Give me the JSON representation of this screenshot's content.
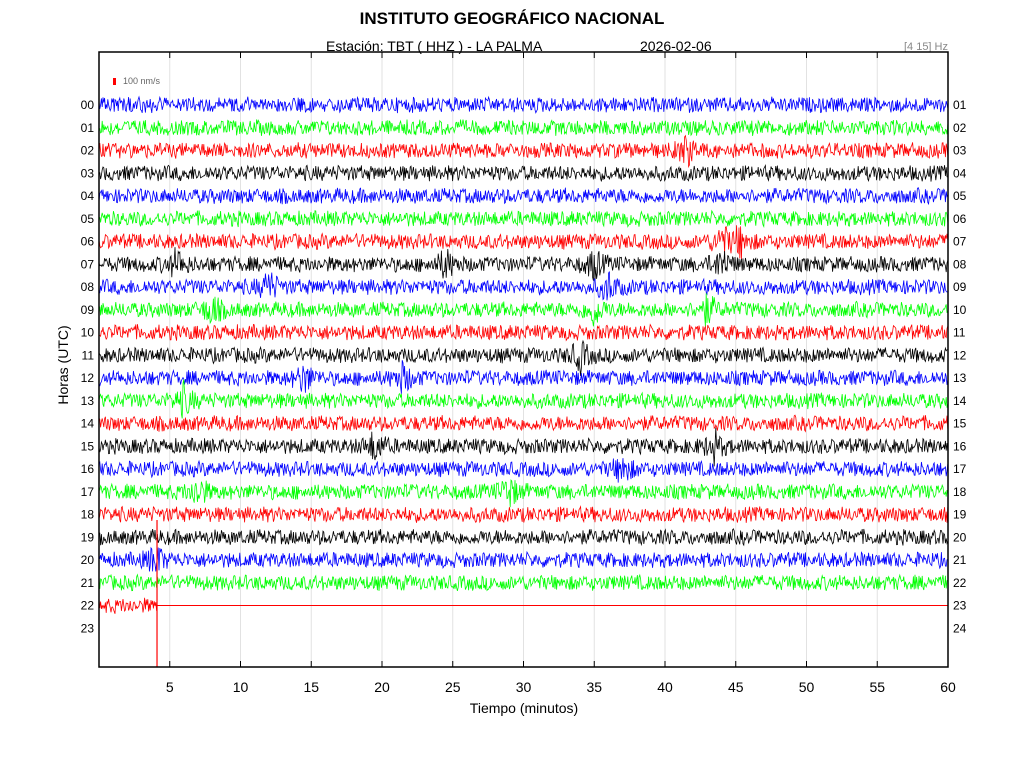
{
  "header": {
    "title": "INSTITUTO GEOGRÁFICO NACIONAL",
    "station": "Estación:  TBT ( HHZ ) - LA PALMA",
    "date": "2026-02-06",
    "filter": "[4 15] Hz"
  },
  "legend": {
    "scale_label": "100 nm/s",
    "scale_color": "#ff0000"
  },
  "chart_data": {
    "type": "line",
    "title": "INSTITUTO GEOGRÁFICO NACIONAL",
    "xlabel": "Tiempo (minutos)",
    "ylabel": "Horas (UTC)",
    "xlim": [
      0,
      60
    ],
    "x_ticks": [
      5,
      10,
      15,
      20,
      25,
      30,
      35,
      40,
      45,
      50,
      55,
      60
    ],
    "left_hour_labels": [
      "00",
      "01",
      "02",
      "03",
      "04",
      "05",
      "06",
      "07",
      "08",
      "09",
      "10",
      "11",
      "12",
      "13",
      "14",
      "15",
      "16",
      "17",
      "18",
      "19",
      "20",
      "21",
      "22",
      "23"
    ],
    "right_hour_labels": [
      "01",
      "02",
      "03",
      "04",
      "05",
      "06",
      "07",
      "08",
      "09",
      "10",
      "11",
      "12",
      "13",
      "14",
      "15",
      "16",
      "17",
      "18",
      "19",
      "20",
      "21",
      "22",
      "23",
      "24"
    ],
    "color_cycle": [
      "#0000ff",
      "#00ff00",
      "#ff0000",
      "#000000"
    ],
    "grid": true,
    "last_data_minute": 4.1,
    "events": [
      {
        "hour": 2,
        "minute": 41.5
      },
      {
        "hour": 6,
        "minute": 44
      },
      {
        "hour": 6,
        "minute": 45.3
      },
      {
        "hour": 7,
        "minute": 5.5
      },
      {
        "hour": 7,
        "minute": 24.5
      },
      {
        "hour": 7,
        "minute": 35
      },
      {
        "hour": 7,
        "minute": 44
      },
      {
        "hour": 8,
        "minute": 12
      },
      {
        "hour": 8,
        "minute": 36
      },
      {
        "hour": 9,
        "minute": 8
      },
      {
        "hour": 9,
        "minute": 35
      },
      {
        "hour": 9,
        "minute": 43
      },
      {
        "hour": 11,
        "minute": 34
      },
      {
        "hour": 12,
        "minute": 14.5
      },
      {
        "hour": 12,
        "minute": 21.5
      },
      {
        "hour": 13,
        "minute": 6
      },
      {
        "hour": 15,
        "minute": 19.5
      },
      {
        "hour": 15,
        "minute": 43.5
      },
      {
        "hour": 16,
        "minute": 37
      },
      {
        "hour": 17,
        "minute": 7
      },
      {
        "hour": 17,
        "minute": 29
      },
      {
        "hour": 20,
        "minute": 4
      }
    ]
  }
}
